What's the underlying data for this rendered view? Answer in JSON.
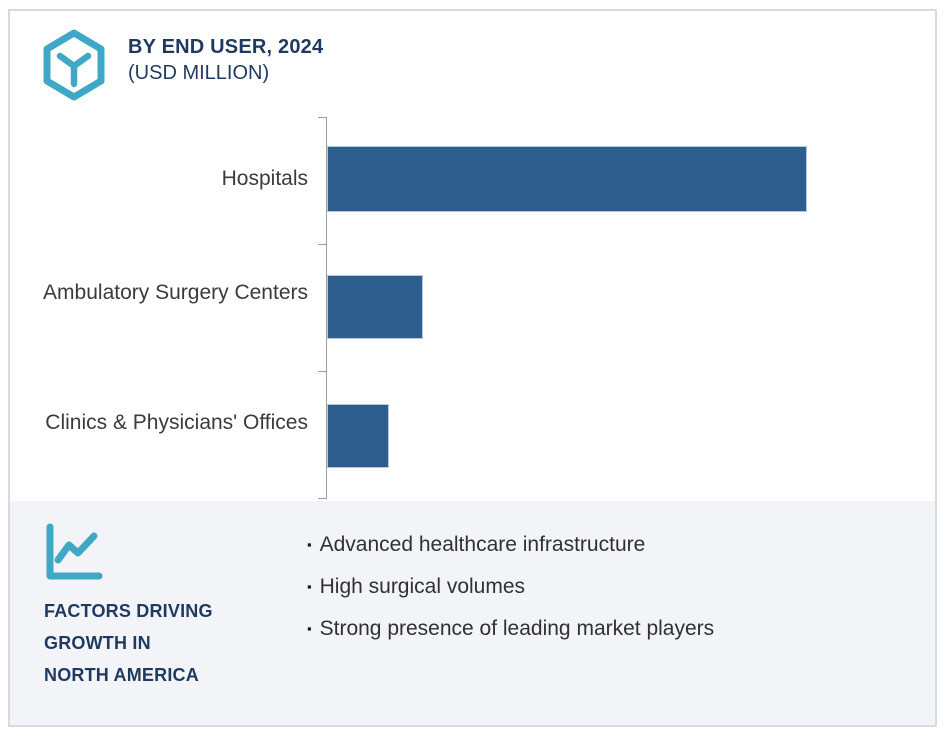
{
  "header": {
    "title": "BY END USER, 2024",
    "subtitle": "(USD MILLION)",
    "icon": "cube-hexagon-icon"
  },
  "chart_data": {
    "type": "bar",
    "orientation": "horizontal",
    "title": "BY END USER, 2024",
    "units": "USD Million",
    "categories": [
      "Hospitals",
      "Ambulatory Surgery Centers",
      "Clinics & Physicians' Offices"
    ],
    "values": [
      100,
      20,
      13
    ],
    "value_scale": "relative; numeric axis values and data labels are not shown in the image",
    "value_labels_shown": false,
    "grid": false,
    "legend": false,
    "bar_color": "#2d5e8d",
    "axis_color": "#9e9e9e"
  },
  "panel": {
    "icon": "line-chart-icon",
    "bullet_marker": "▪",
    "heading": "FACTORS DRIVING GROWTH IN NORTH AMERICA",
    "heading_lines": [
      "FACTORS DRIVING",
      "GROWTH IN",
      "NORTH AMERICA"
    ],
    "bullets": [
      "Advanced healthcare infrastructure",
      "High surgical volumes",
      "Strong presence of leading market players"
    ]
  },
  "colors": {
    "accent_teal": "#3fa9c5",
    "navy": "#1f3a5f",
    "bar_blue": "#2d5e8d",
    "panel_bg": "#f2f4f7",
    "card_border": "#d7dae1",
    "axis_gray": "#9e9e9e",
    "text_dark": "#363636"
  }
}
